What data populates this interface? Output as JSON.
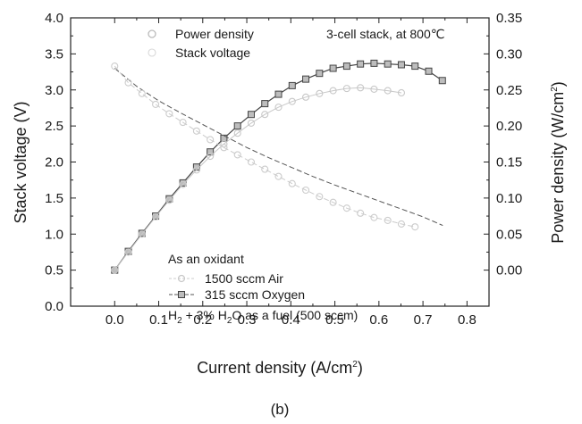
{
  "chart_data": {
    "type": "line",
    "caption": "(b)",
    "annotation": "3-cell stack, at 800℃",
    "xlabel": {
      "main": "Current density (A/cm",
      "sup": "2",
      "end": ")"
    },
    "ylabel_left": "Stack voltage (V)",
    "ylabel_right": {
      "main": "Power density (W/cm",
      "sup": "2",
      "end": ")"
    },
    "xlim": [
      -0.1,
      0.85
    ],
    "ylim_left": [
      0.0,
      4.0
    ],
    "ylim_right": [
      -0.05,
      0.35
    ],
    "xticks": [
      "0.0",
      "0.1",
      "0.2",
      "0.3",
      "0.4",
      "0.5",
      "0.6",
      "0.7",
      "0.8"
    ],
    "yticks_left": [
      "0.0",
      "0.5",
      "1.0",
      "1.5",
      "2.0",
      "2.5",
      "3.0",
      "3.5",
      "4.0"
    ],
    "yticks_right": [
      "0.00",
      "0.05",
      "0.10",
      "0.15",
      "0.20",
      "0.25",
      "0.30",
      "0.35"
    ],
    "legend_top": [
      "Power density",
      "Stack voltage"
    ],
    "legend_bottom": {
      "header": "As an oxidant",
      "items": [
        "1500 sccm Air",
        "315 sccm Oxygen"
      ]
    },
    "fuel_note": {
      "a": "H",
      "b": "2",
      "c": " + 3% H",
      "d": "2",
      "e": "O as a fuel (500 sccm)"
    },
    "series": [
      {
        "name": "315 sccm Oxygen",
        "quantity": "Power density",
        "axis": "right",
        "color": "#444444",
        "marker": "square",
        "x": [
          0.0,
          0.031,
          0.062,
          0.093,
          0.124,
          0.155,
          0.186,
          0.217,
          0.248,
          0.279,
          0.31,
          0.341,
          0.372,
          0.403,
          0.434,
          0.465,
          0.496,
          0.527,
          0.558,
          0.589,
          0.62,
          0.651,
          0.682,
          0.713,
          0.744
        ],
        "y": [
          0.0,
          0.026,
          0.051,
          0.075,
          0.099,
          0.121,
          0.143,
          0.164,
          0.183,
          0.2,
          0.216,
          0.231,
          0.244,
          0.256,
          0.265,
          0.273,
          0.28,
          0.283,
          0.286,
          0.287,
          0.286,
          0.285,
          0.283,
          0.276,
          0.263
        ]
      },
      {
        "name": "315 sccm Oxygen",
        "quantity": "Stack voltage",
        "axis": "left",
        "color": "#555555",
        "marker": "none",
        "x": [
          0.0,
          0.05,
          0.1,
          0.15,
          0.2,
          0.25,
          0.3,
          0.35,
          0.4,
          0.45,
          0.5,
          0.55,
          0.6,
          0.65,
          0.7,
          0.745
        ],
        "y": [
          3.3,
          3.05,
          2.85,
          2.68,
          2.52,
          2.36,
          2.2,
          2.06,
          1.93,
          1.8,
          1.68,
          1.57,
          1.46,
          1.35,
          1.24,
          1.12
        ]
      },
      {
        "name": "1500 sccm Air",
        "quantity": "Power density",
        "axis": "right",
        "color": "#c8c8c8",
        "marker": "circle",
        "x": [
          0.0,
          0.031,
          0.062,
          0.093,
          0.124,
          0.155,
          0.186,
          0.217,
          0.248,
          0.279,
          0.31,
          0.341,
          0.372,
          0.403,
          0.434,
          0.465,
          0.496,
          0.527,
          0.558,
          0.589,
          0.62,
          0.651
        ],
        "y": [
          0.0,
          0.025,
          0.05,
          0.074,
          0.097,
          0.119,
          0.139,
          0.158,
          0.175,
          0.19,
          0.204,
          0.216,
          0.226,
          0.234,
          0.24,
          0.245,
          0.249,
          0.252,
          0.253,
          0.251,
          0.249,
          0.246
        ]
      },
      {
        "name": "1500 sccm Air",
        "quantity": "Stack voltage",
        "axis": "left",
        "color": "#cccccc",
        "marker": "circle",
        "x": [
          0.0,
          0.031,
          0.062,
          0.093,
          0.124,
          0.155,
          0.186,
          0.217,
          0.248,
          0.279,
          0.31,
          0.341,
          0.372,
          0.403,
          0.434,
          0.465,
          0.496,
          0.527,
          0.558,
          0.589,
          0.62,
          0.651,
          0.682
        ],
        "y": [
          3.33,
          3.1,
          2.95,
          2.8,
          2.67,
          2.55,
          2.43,
          2.31,
          2.2,
          2.1,
          2.0,
          1.9,
          1.8,
          1.7,
          1.61,
          1.52,
          1.44,
          1.36,
          1.29,
          1.23,
          1.19,
          1.14,
          1.1
        ]
      }
    ]
  }
}
